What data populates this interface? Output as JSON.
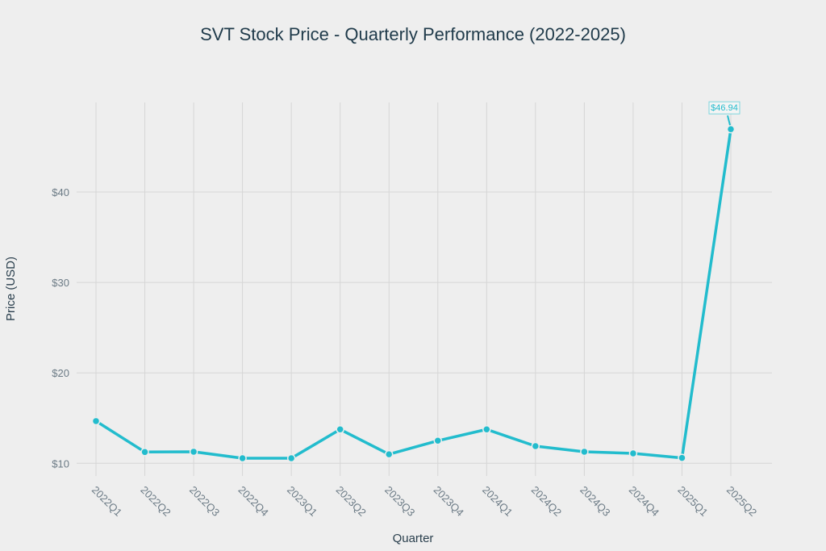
{
  "chart_data": {
    "type": "line",
    "title": "SVT Stock Price - Quarterly Performance (2022-2025)",
    "xlabel": "Quarter",
    "ylabel": "Price (USD)",
    "categories": [
      "2022Q1",
      "2022Q2",
      "2022Q3",
      "2022Q4",
      "2023Q1",
      "2023Q2",
      "2023Q3",
      "2023Q4",
      "2024Q1",
      "2024Q2",
      "2024Q3",
      "2024Q4",
      "2025Q1",
      "2025Q2"
    ],
    "series": [
      {
        "name": "SVT",
        "values": [
          14.67,
          11.25,
          11.28,
          10.56,
          10.56,
          13.75,
          11.0,
          12.5,
          13.75,
          11.9,
          11.28,
          11.1,
          10.6,
          46.94
        ]
      }
    ],
    "ylim": [
      8.6,
      49.9
    ],
    "yticks": [
      10,
      20,
      30,
      40
    ],
    "ytick_labels": [
      "$10",
      "$20",
      "$30",
      "$40"
    ],
    "grid": true,
    "color": "#22bccd",
    "annotation": {
      "category": "2025Q2",
      "text": "$46.94"
    }
  }
}
